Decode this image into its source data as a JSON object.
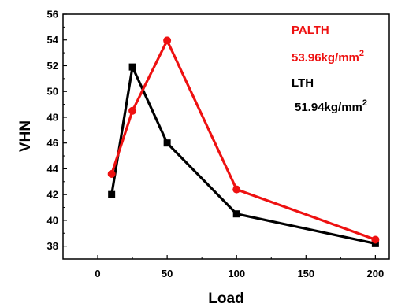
{
  "chart_data": {
    "type": "line",
    "xlabel": "Load",
    "ylabel": "VHN",
    "xlim": [
      -25,
      210
    ],
    "ylim": [
      37,
      56
    ],
    "xticks": [
      0,
      50,
      100,
      150,
      200
    ],
    "yticks": [
      38,
      40,
      42,
      44,
      46,
      48,
      50,
      52,
      54,
      56
    ],
    "grid": false,
    "legend": "none",
    "series": [
      {
        "color": "#000000",
        "marker": "square",
        "x": [
          10,
          25,
          50,
          100,
          200
        ],
        "y": [
          42.0,
          51.9,
          46.0,
          40.5,
          38.2
        ]
      },
      {
        "color": "#ee1111",
        "marker": "circle",
        "x": [
          10,
          25,
          50,
          100,
          200
        ],
        "y": [
          43.6,
          48.5,
          53.96,
          42.4,
          38.5
        ]
      }
    ],
    "annotations": [
      {
        "text": "PALTH",
        "color": "#ee1111"
      },
      {
        "text": "53.96kg/mm",
        "sup": "2",
        "color": "#ee1111"
      },
      {
        "text": "LTH",
        "color": "#000000"
      },
      {
        "text": "51.94kg/mm",
        "sup": "2",
        "color": "#000000"
      }
    ]
  }
}
